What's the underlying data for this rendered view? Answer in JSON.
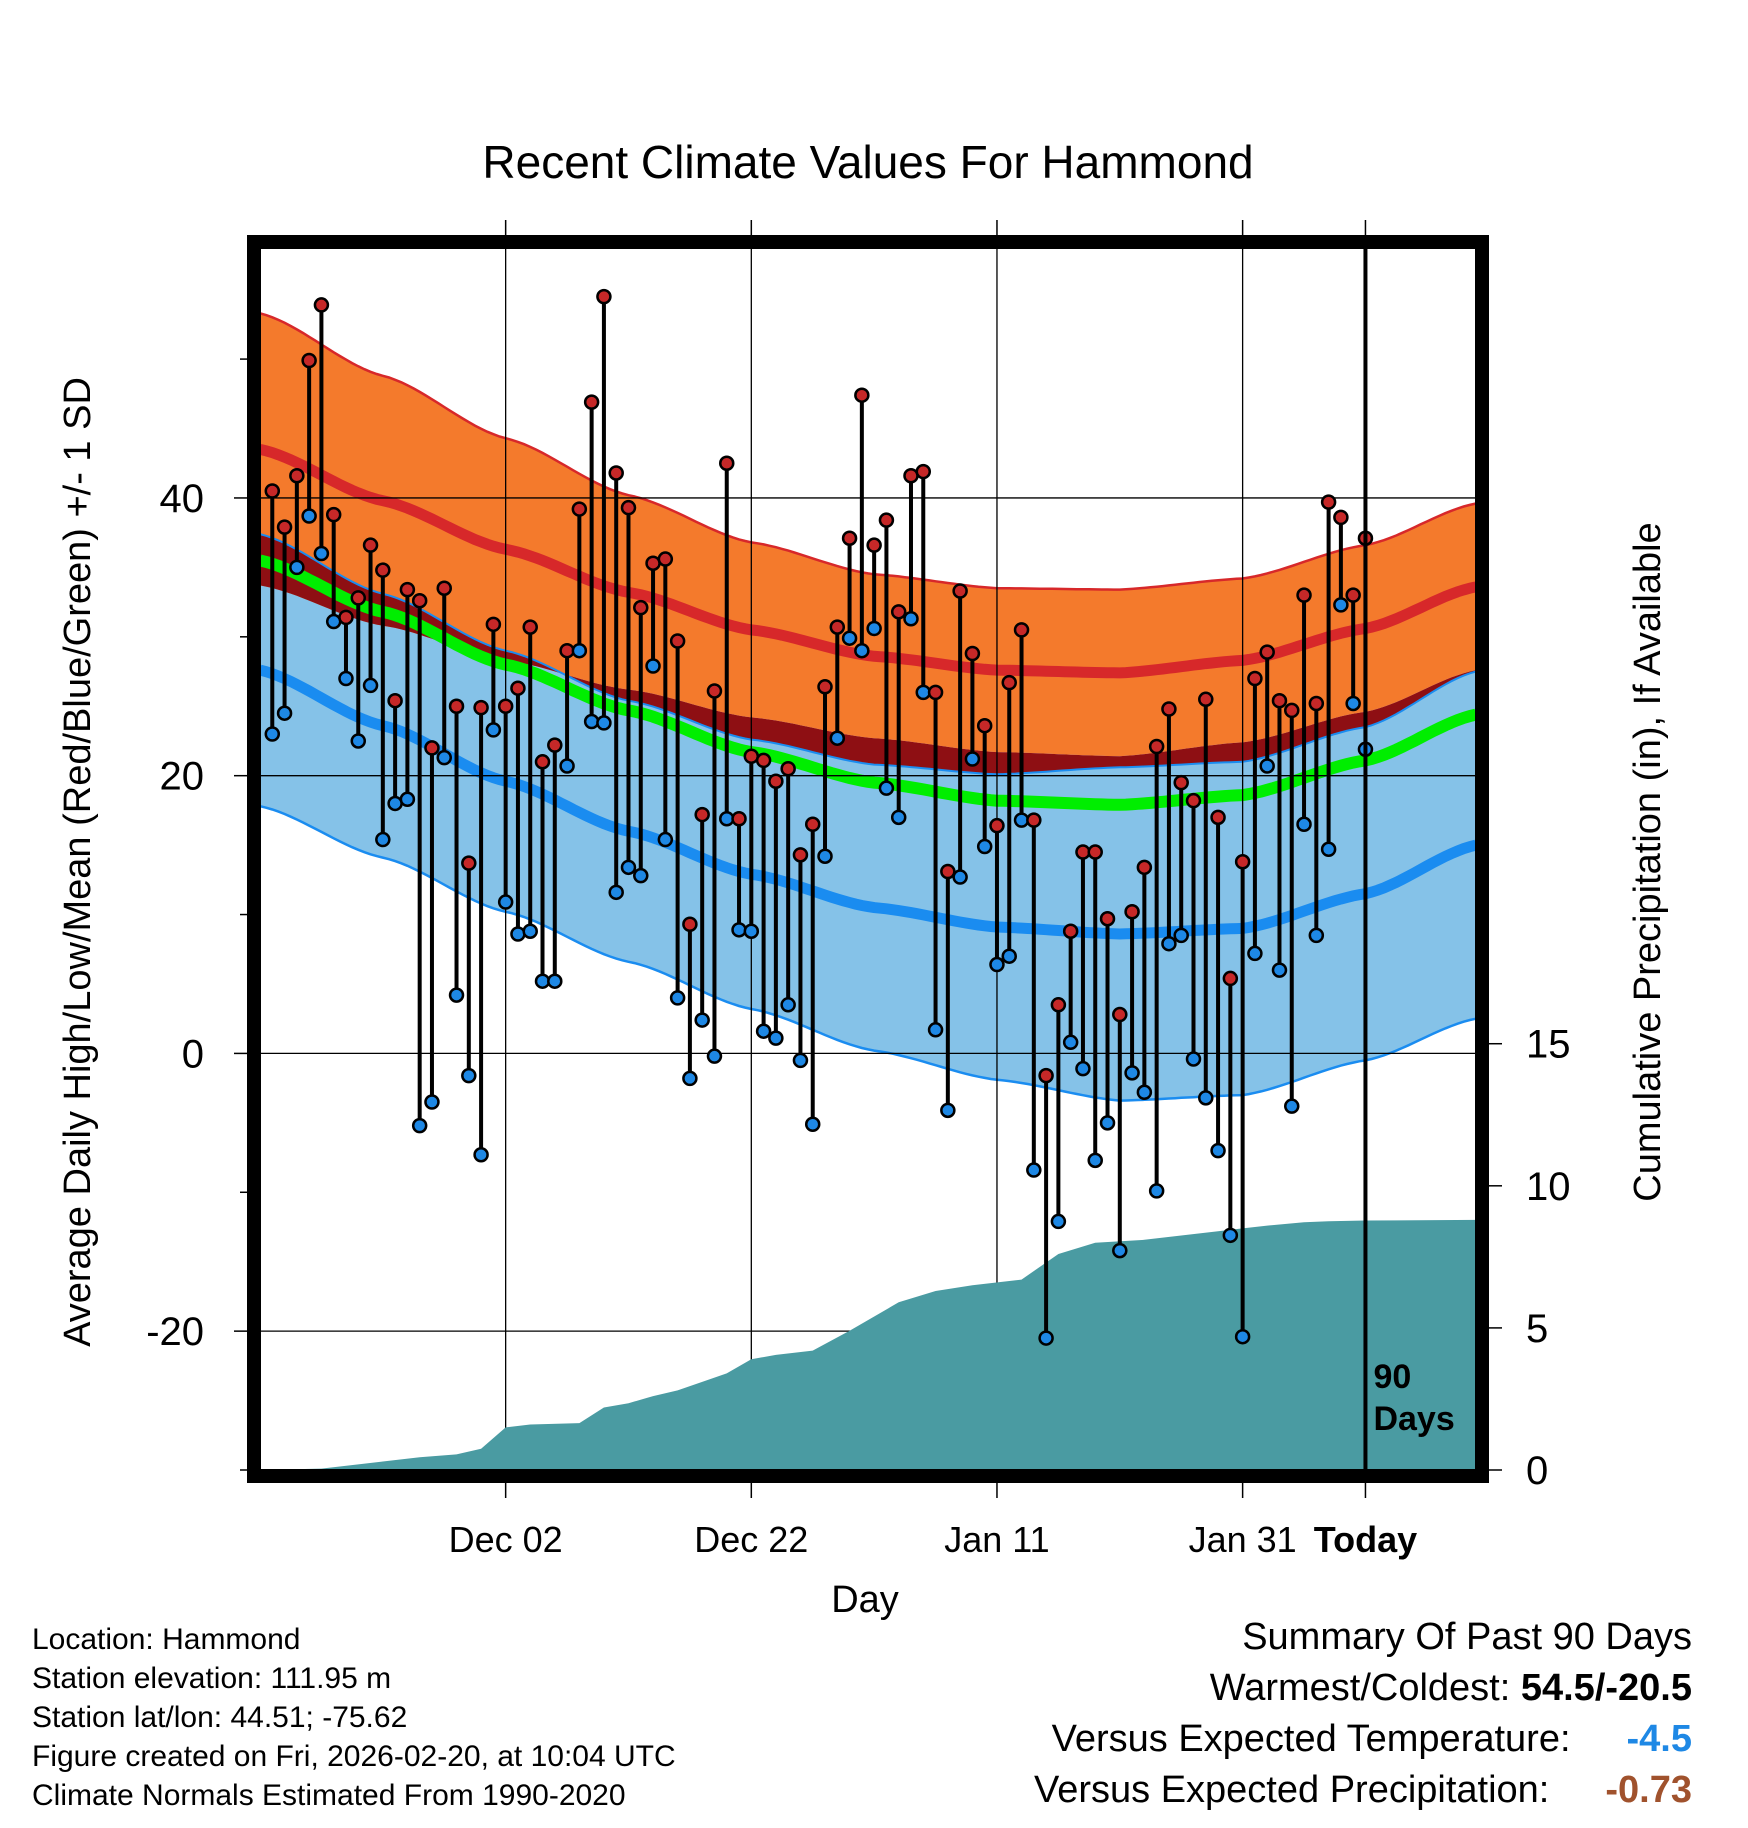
{
  "chart_data": {
    "type": "line",
    "title": "Recent Climate Values For Hammond",
    "xlabel": "Day",
    "ylabel": "Average Daily High/Low/Mean (Red/Blue/Green) +/- 1 SD",
    "y2label": "Cumulative Precipitation (in), If Available",
    "day_range": [
      -90,
      9
    ],
    "ylim": [
      -30,
      58
    ],
    "y2lim": [
      0,
      43
    ],
    "x_ticks": [
      {
        "day": -70,
        "label": "Dec 02"
      },
      {
        "day": -50,
        "label": "Dec 22"
      },
      {
        "day": -30,
        "label": "Jan 11"
      },
      {
        "day": -10,
        "label": "Jan 31"
      },
      {
        "day": 0,
        "label": "Today"
      }
    ],
    "y_ticks": [
      {
        "value": -20,
        "label": "-20"
      },
      {
        "value": 0,
        "label": "0"
      },
      {
        "value": 20,
        "label": "20"
      },
      {
        "value": 40,
        "label": "40"
      }
    ],
    "y2_ticks": [
      {
        "value": 0,
        "label": "0"
      },
      {
        "value": 5,
        "label": "5"
      },
      {
        "value": 10,
        "label": "10"
      },
      {
        "value": 15,
        "label": "15"
      }
    ],
    "today_marker": {
      "day": 0,
      "label_1": "90",
      "label_2": "Days"
    },
    "normals": {
      "days": [
        -90,
        -80,
        -70,
        -60,
        -50,
        -40,
        -30,
        -20,
        -10,
        0,
        9
      ],
      "high_mean": [
        43.5,
        39.8,
        36.3,
        33.2,
        30.5,
        28.6,
        27.6,
        27.4,
        28.3,
        30.6,
        33.6
      ],
      "high_sd": [
        9.8,
        9.0,
        8.0,
        7.0,
        6.3,
        5.9,
        5.9,
        6.0,
        5.9,
        6.0,
        6.0
      ],
      "low_mean": [
        27.6,
        23.6,
        19.6,
        16.0,
        12.9,
        10.5,
        9.1,
        8.6,
        9.0,
        11.5,
        15.0
      ],
      "low_sd": [
        9.8,
        9.5,
        9.4,
        9.4,
        9.7,
        10.3,
        11.0,
        12.0,
        12.0,
        12.0,
        12.5
      ],
      "mean": [
        35.5,
        31.8,
        28.0,
        24.7,
        21.7,
        19.5,
        18.2,
        17.9,
        18.6,
        21.1,
        24.4
      ],
      "mean_sd": [
        1.5,
        1.5,
        1.5,
        1.5,
        1.5,
        1.5,
        1.5,
        1.5,
        1.5,
        1.5,
        1.5
      ]
    },
    "daily": [
      {
        "day": -89,
        "high": 40.5,
        "low": 23.0
      },
      {
        "day": -88,
        "high": 37.9,
        "low": 24.5
      },
      {
        "day": -87,
        "high": 41.6,
        "low": 35.0
      },
      {
        "day": -86,
        "high": 49.9,
        "low": 38.7
      },
      {
        "day": -85,
        "high": 53.9,
        "low": 36.0
      },
      {
        "day": -84,
        "high": 38.8,
        "low": 31.1
      },
      {
        "day": -83,
        "high": 31.4,
        "low": 27.0
      },
      {
        "day": -82,
        "high": 32.8,
        "low": 22.5
      },
      {
        "day": -81,
        "high": 36.6,
        "low": 26.5
      },
      {
        "day": -80,
        "high": 34.8,
        "low": 15.4
      },
      {
        "day": -79,
        "high": 25.4,
        "low": 18.0
      },
      {
        "day": -78,
        "high": 33.4,
        "low": 18.3
      },
      {
        "day": -77,
        "high": 32.6,
        "low": -5.2
      },
      {
        "day": -76,
        "high": 22.0,
        "low": -3.5
      },
      {
        "day": -75,
        "high": 33.5,
        "low": 21.3
      },
      {
        "day": -74,
        "high": 25.0,
        "low": 4.2
      },
      {
        "day": -73,
        "high": 13.7,
        "low": -1.6
      },
      {
        "day": -72,
        "high": 24.9,
        "low": -7.3
      },
      {
        "day": -71,
        "high": 30.9,
        "low": 23.3
      },
      {
        "day": -70,
        "high": 25.0,
        "low": 10.9
      },
      {
        "day": -69,
        "high": 26.3,
        "low": 8.6
      },
      {
        "day": -68,
        "high": 30.7,
        "low": 8.8
      },
      {
        "day": -67,
        "high": 21.0,
        "low": 5.2
      },
      {
        "day": -66,
        "high": 22.2,
        "low": 5.2
      },
      {
        "day": -65,
        "high": 29.0,
        "low": 20.7
      },
      {
        "day": -64,
        "high": 39.2,
        "low": 29.0
      },
      {
        "day": -63,
        "high": 46.9,
        "low": 23.9
      },
      {
        "day": -62,
        "high": 54.5,
        "low": 23.8
      },
      {
        "day": -61,
        "high": 41.8,
        "low": 11.6
      },
      {
        "day": -60,
        "high": 39.3,
        "low": 13.4
      },
      {
        "day": -59,
        "high": 32.1,
        "low": 12.8
      },
      {
        "day": -58,
        "high": 35.3,
        "low": 27.9
      },
      {
        "day": -57,
        "high": 35.6,
        "low": 15.4
      },
      {
        "day": -56,
        "high": 29.7,
        "low": 4.0
      },
      {
        "day": -55,
        "high": 9.3,
        "low": -1.8
      },
      {
        "day": -54,
        "high": 17.2,
        "low": 2.4
      },
      {
        "day": -53,
        "high": 26.1,
        "low": -0.2
      },
      {
        "day": -52,
        "high": 42.5,
        "low": 16.9
      },
      {
        "day": -51,
        "high": 16.9,
        "low": 8.9
      },
      {
        "day": -50,
        "high": 21.4,
        "low": 8.8
      },
      {
        "day": -49,
        "high": 21.1,
        "low": 1.6
      },
      {
        "day": -48,
        "high": 19.6,
        "low": 1.1
      },
      {
        "day": -47,
        "high": 20.5,
        "low": 3.5
      },
      {
        "day": -46,
        "high": 14.3,
        "low": -0.5
      },
      {
        "day": -45,
        "high": 16.5,
        "low": -5.1
      },
      {
        "day": -44,
        "high": 26.4,
        "low": 14.2
      },
      {
        "day": -43,
        "high": 30.7,
        "low": 22.7
      },
      {
        "day": -42,
        "high": 37.1,
        "low": 29.9
      },
      {
        "day": -41,
        "high": 47.4,
        "low": 29.0
      },
      {
        "day": -40,
        "high": 36.6,
        "low": 30.6
      },
      {
        "day": -39,
        "high": 38.4,
        "low": 19.1
      },
      {
        "day": -38,
        "high": 31.8,
        "low": 17.0
      },
      {
        "day": -37,
        "high": 41.6,
        "low": 31.3
      },
      {
        "day": -36,
        "high": 41.9,
        "low": 26.0
      },
      {
        "day": -35,
        "high": 26.0,
        "low": 1.7
      },
      {
        "day": -34,
        "high": 13.1,
        "low": -4.1
      },
      {
        "day": -33,
        "high": 33.3,
        "low": 12.7
      },
      {
        "day": -32,
        "high": 28.8,
        "low": 21.2
      },
      {
        "day": -31,
        "high": 23.6,
        "low": 14.9
      },
      {
        "day": -30,
        "high": 16.4,
        "low": 6.4
      },
      {
        "day": -29,
        "high": 26.7,
        "low": 7.0
      },
      {
        "day": -28,
        "high": 30.5,
        "low": 16.8
      },
      {
        "day": -27,
        "high": 16.8,
        "low": -8.4
      },
      {
        "day": -26,
        "high": -1.6,
        "low": -20.5
      },
      {
        "day": -25,
        "high": 3.5,
        "low": -12.1
      },
      {
        "day": -24,
        "high": 8.8,
        "low": 0.8
      },
      {
        "day": -23,
        "high": 14.5,
        "low": -1.1
      },
      {
        "day": -22,
        "high": 14.5,
        "low": -7.7
      },
      {
        "day": -21,
        "high": 9.7,
        "low": -5.0
      },
      {
        "day": -20,
        "high": 2.8,
        "low": -14.2
      },
      {
        "day": -19,
        "high": 10.2,
        "low": -1.4
      },
      {
        "day": -18,
        "high": 13.4,
        "low": -2.8
      },
      {
        "day": -17,
        "high": 22.1,
        "low": -9.9
      },
      {
        "day": -16,
        "high": 24.8,
        "low": 7.9
      },
      {
        "day": -15,
        "high": 19.5,
        "low": 8.5
      },
      {
        "day": -14,
        "high": 18.2,
        "low": -0.4
      },
      {
        "day": -13,
        "high": 25.5,
        "low": -3.2
      },
      {
        "day": -12,
        "high": 17.0,
        "low": -7.0
      },
      {
        "day": -11,
        "high": 5.4,
        "low": -13.1
      },
      {
        "day": -10,
        "high": 13.8,
        "low": -20.4
      },
      {
        "day": -9,
        "high": 27.0,
        "low": 7.2
      },
      {
        "day": -8,
        "high": 28.9,
        "low": 20.7
      },
      {
        "day": -7,
        "high": 25.4,
        "low": 6.0
      },
      {
        "day": -6,
        "high": 24.7,
        "low": -3.8
      },
      {
        "day": -5,
        "high": 33.0,
        "low": 16.5
      },
      {
        "day": -4,
        "high": 25.2,
        "low": 8.5
      },
      {
        "day": -3,
        "high": 39.7,
        "low": 14.7
      },
      {
        "day": -2,
        "high": 38.6,
        "low": 32.3
      },
      {
        "day": -1,
        "high": 33.0,
        "low": 25.2
      },
      {
        "day": 0,
        "high": 37.1,
        "low": 21.9
      }
    ],
    "precip_cumulative": [
      [
        -90,
        0.0
      ],
      [
        -85,
        0.05
      ],
      [
        -80,
        0.3
      ],
      [
        -77,
        0.45
      ],
      [
        -74,
        0.55
      ],
      [
        -72,
        0.75
      ],
      [
        -70,
        1.5
      ],
      [
        -68,
        1.6
      ],
      [
        -64,
        1.65
      ],
      [
        -62,
        2.2
      ],
      [
        -60,
        2.35
      ],
      [
        -58,
        2.6
      ],
      [
        -56,
        2.8
      ],
      [
        -54,
        3.1
      ],
      [
        -52,
        3.4
      ],
      [
        -50,
        3.9
      ],
      [
        -48,
        4.05
      ],
      [
        -45,
        4.2
      ],
      [
        -42,
        4.9
      ],
      [
        -38,
        5.9
      ],
      [
        -35,
        6.3
      ],
      [
        -32,
        6.5
      ],
      [
        -28,
        6.7
      ],
      [
        -25,
        7.6
      ],
      [
        -22,
        8.0
      ],
      [
        -18,
        8.1
      ],
      [
        -15,
        8.25
      ],
      [
        -12,
        8.4
      ],
      [
        -10,
        8.5
      ],
      [
        -8,
        8.6
      ],
      [
        -5,
        8.72
      ],
      [
        -3,
        8.75
      ],
      [
        0,
        8.78
      ],
      [
        9,
        8.8
      ]
    ]
  },
  "info": {
    "location": "Location: Hammond",
    "elevation": "Station elevation: 111.95 m",
    "latlon": "Station lat/lon: 44.51; -75.62",
    "created": "Figure created on Fri, 2026-02-20, at 10:04 UTC",
    "normals": "Climate Normals Estimated From 1990-2020"
  },
  "summary": {
    "title": "Summary Of Past 90 Days",
    "warmest_label": "Warmest/Coldest:",
    "warmest_value": "54.5/-20.5",
    "temp_label": "Versus Expected Temperature:",
    "temp_value": "-4.5",
    "precip_label": "Versus Expected Precipitation:",
    "precip_value": "-0.73"
  },
  "colors": {
    "high_band": "#f47a2c",
    "high_line": "#d7282a",
    "mean_band": "#8e0f13",
    "mean_line": "#00ee00",
    "low_band": "#85c2e8",
    "low_line": "#1a8cf0",
    "precip": "#4a9ba2",
    "high_dot": "#c62828",
    "low_dot": "#1e88e5",
    "temp_value": "#1e88e5",
    "precip_value": "#a0522d"
  }
}
